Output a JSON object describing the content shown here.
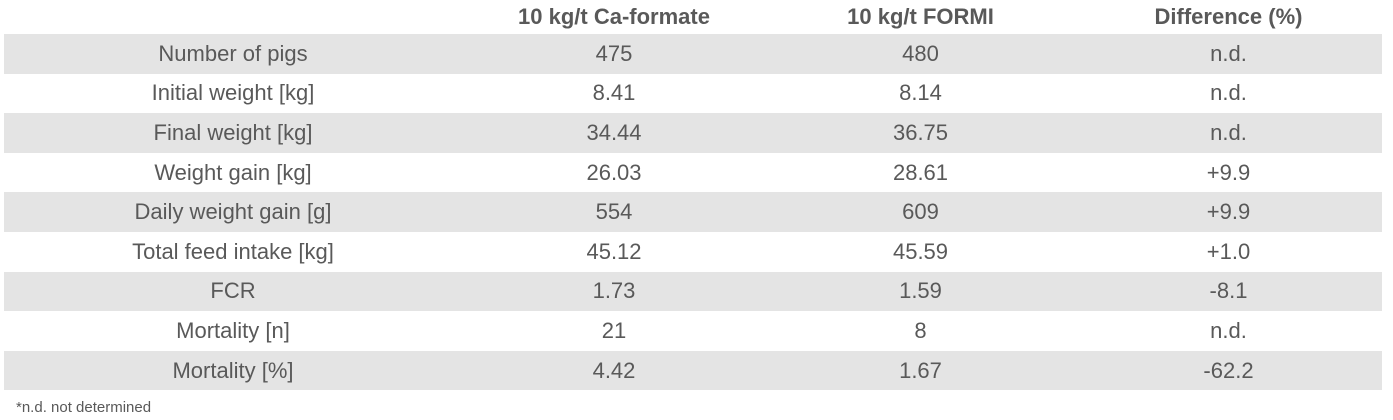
{
  "table": {
    "header": [
      "",
      "10 kg/t Ca-formate",
      "10 kg/t FORMI",
      "Difference (%)"
    ],
    "rows": [
      [
        "Number of pigs",
        "475",
        "480",
        "n.d."
      ],
      [
        "Initial weight [kg]",
        "8.41",
        "8.14",
        "n.d."
      ],
      [
        "Final weight [kg]",
        "34.44",
        "36.75",
        "n.d."
      ],
      [
        "Weight gain [kg]",
        "26.03",
        "28.61",
        "+9.9"
      ],
      [
        "Daily weight gain [g]",
        "554",
        "609",
        "+9.9"
      ],
      [
        "Total feed intake [kg]",
        "45.12",
        "45.59",
        "+1.0"
      ],
      [
        "FCR",
        "1.73",
        "1.59",
        "-8.1"
      ],
      [
        "Mortality [n]",
        "21",
        "8",
        "n.d."
      ],
      [
        "Mortality [%]",
        "4.42",
        "1.67",
        "-62.2"
      ]
    ],
    "footnote": "*n.d. not determined"
  }
}
